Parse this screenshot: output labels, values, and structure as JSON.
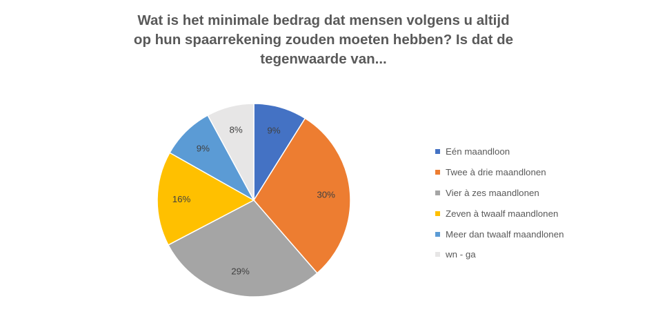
{
  "chart_data": {
    "type": "pie",
    "title_lines": [
      "Wat is het minimale bedrag dat mensen volgens u altijd",
      "op hun spaarrekening zouden moeten hebben? Is dat de",
      "tegenwaarde van..."
    ],
    "categories": [
      "Eén maandloon",
      "Twee à drie maandlonen",
      "Vier à zes maandlonen",
      "Zeven à twaalf maandlonen",
      "Meer dan twaalf maandlonen",
      "wn - ga"
    ],
    "values": [
      9,
      30,
      29,
      16,
      9,
      8
    ],
    "labels": [
      "9%",
      "30%",
      "29%",
      "16%",
      "9%",
      "8%"
    ],
    "colors": [
      "#4472c4",
      "#ed7d31",
      "#a5a5a5",
      "#ffc000",
      "#5b9bd5",
      "#e7e6e6"
    ],
    "legend_position": "right"
  }
}
